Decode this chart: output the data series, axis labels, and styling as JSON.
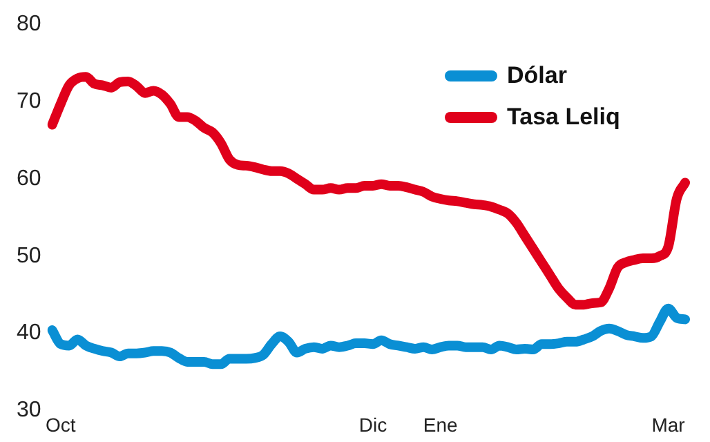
{
  "chart_data": {
    "type": "line",
    "categories": [
      null,
      "Oct",
      null,
      null,
      null,
      null,
      null,
      null,
      null,
      null,
      null,
      null,
      null,
      null,
      null,
      null,
      null,
      null,
      null,
      null,
      null,
      null,
      null,
      null,
      null,
      null,
      null,
      null,
      null,
      null,
      null,
      null,
      null,
      null,
      null,
      null,
      null,
      null,
      "Dic",
      null,
      null,
      null,
      null,
      null,
      null,
      null,
      "Ene",
      null,
      null,
      null,
      null,
      null,
      null,
      null,
      null,
      null,
      null,
      null,
      null,
      null,
      null,
      null,
      null,
      null,
      null,
      null,
      null,
      null,
      null,
      null,
      null,
      null,
      null,
      "Mar",
      null,
      null
    ],
    "series": [
      {
        "name": "Dólar",
        "color": "#0a8fd4",
        "values": [
          40.4,
          38.6,
          38.4,
          39.2,
          38.4,
          38,
          37.7,
          37.5,
          37,
          37.4,
          37.4,
          37.5,
          37.7,
          37.7,
          37.5,
          36.8,
          36.3,
          36.3,
          36.3,
          36,
          36,
          36.7,
          36.7,
          36.7,
          36.8,
          37.2,
          38.6,
          39.6,
          38.9,
          37.5,
          38,
          38.2,
          38,
          38.4,
          38.2,
          38.4,
          38.7,
          38.7,
          38.6,
          39.1,
          38.6,
          38.4,
          38.2,
          38,
          38.2,
          37.9,
          38.2,
          38.4,
          38.4,
          38.2,
          38.2,
          38.2,
          37.9,
          38.4,
          38.2,
          37.9,
          38,
          37.9,
          38.6,
          38.6,
          38.7,
          38.9,
          38.9,
          39.2,
          39.6,
          40.3,
          40.6,
          40.3,
          39.8,
          39.6,
          39.4,
          39.6,
          41.5,
          43.2,
          42,
          41.8
        ]
      },
      {
        "name": "Tasa Leliq",
        "color": "#e0001b",
        "values": [
          67,
          69.7,
          72.1,
          73,
          73.2,
          72.3,
          72.1,
          71.8,
          72.5,
          72.6,
          72,
          71.1,
          71.4,
          70.9,
          69.7,
          68,
          68,
          67.5,
          66.6,
          66,
          64.6,
          62.5,
          61.8,
          61.7,
          61.5,
          61.2,
          61,
          61,
          60.7,
          60,
          59.3,
          58.6,
          58.6,
          58.8,
          58.6,
          58.8,
          58.8,
          59.1,
          59.1,
          59.3,
          59.1,
          59.1,
          58.9,
          58.6,
          58.3,
          57.7,
          57.4,
          57.2,
          57.1,
          56.9,
          56.7,
          56.6,
          56.4,
          56,
          55.5,
          54.3,
          52.6,
          50.9,
          49.2,
          47.5,
          45.8,
          44.6,
          43.7,
          43.7,
          43.9,
          44,
          45.8,
          48.5,
          49.2,
          49.5,
          49.7,
          49.7,
          50,
          51.2,
          57.4,
          59.5
        ]
      }
    ],
    "ylim": [
      30,
      80
    ],
    "yticks": [
      30,
      40,
      50,
      60,
      70,
      80
    ],
    "grid": false,
    "legend": "top right",
    "marker": "none",
    "line_style": "solid"
  }
}
